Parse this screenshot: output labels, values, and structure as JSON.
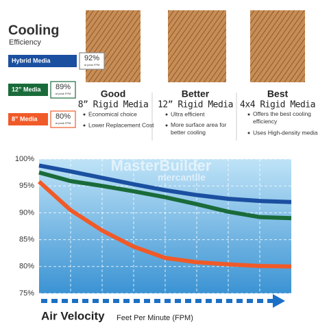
{
  "header": {
    "title": "Cooling",
    "subtitle": "Efficiency"
  },
  "products": [
    {
      "rank": "Good",
      "name": "8” Rigid Media",
      "bullets": [
        "Economical choice",
        "Lower Replacement Cost"
      ]
    },
    {
      "rank": "Better",
      "name": "12” Rigid Media",
      "bullets": [
        "Ultra efficient",
        "More surface area for better cooling"
      ]
    },
    {
      "rank": "Best",
      "name": "4x4 Rigid Media",
      "bullets": [
        "Offers the best cooling efficiency",
        "Uses High-density media"
      ]
    }
  ],
  "watermark": [
    "MasterBuilder",
    "mercantile"
  ],
  "chart_data": {
    "type": "line",
    "x_label": "Air Velocity",
    "x_sublabel": "Feet Per Minute (FPM)",
    "categories": [
      null,
      null,
      null,
      null,
      null,
      null,
      null,
      null,
      null
    ],
    "ylim": [
      75,
      100
    ],
    "yticks": [
      {
        "value": 100,
        "label": "100%"
      },
      {
        "value": 95,
        "label": "95%"
      },
      {
        "value": 90,
        "label": "90%"
      },
      {
        "value": 85,
        "label": "85%"
      },
      {
        "value": 80,
        "label": "80%"
      },
      {
        "value": 75,
        "label": "75%"
      }
    ],
    "grid": true,
    "series": [
      {
        "name": "Hybrid Media",
        "color": "#1b4fa0",
        "peak": "92%",
        "peak_note": "at peak FPM",
        "values": [
          98.8,
          97.7,
          96.5,
          95.3,
          94.2,
          93.3,
          92.6,
          92.2,
          92.0
        ]
      },
      {
        "name": "12” Media",
        "color": "#1a6b3a",
        "peak": "89%",
        "peak_note": "at peak FPM",
        "values": [
          97.5,
          95.9,
          95.0,
          94.0,
          92.9,
          91.6,
          90.2,
          89.2,
          89.0
        ]
      },
      {
        "name": "8” Media",
        "color": "#f05a28",
        "peak": "80%",
        "peak_note": "at peak FPM",
        "values": [
          95.8,
          90.5,
          86.7,
          83.7,
          81.6,
          80.8,
          80.4,
          80.1,
          80.0
        ]
      }
    ]
  }
}
